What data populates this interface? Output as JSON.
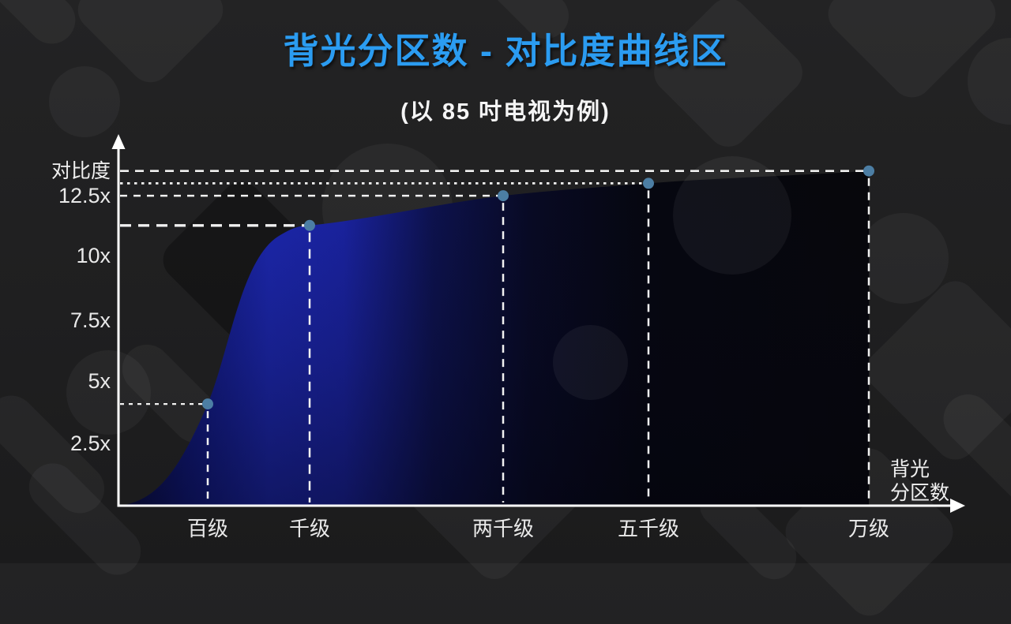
{
  "title": "背光分区数 - 对比度曲线区",
  "subtitle": "(以 85 吋电视为例)",
  "y_axis": {
    "label": "对比度",
    "ticks": [
      "12.5x",
      "10x",
      "7.5x",
      "5x",
      "2.5x"
    ]
  },
  "x_axis": {
    "label_line1": "背光",
    "label_line2": "分区数"
  },
  "chart_data": {
    "type": "area",
    "title": "背光分区数 - 对比度曲线区",
    "subtitle": "(以 85 吋电视为例)",
    "xlabel": "背光分区数",
    "ylabel": "对比度",
    "categories": [
      "百级",
      "千级",
      "两千级",
      "五千级",
      "万级"
    ],
    "values": [
      4.1,
      11.3,
      12.5,
      13.0,
      13.5
    ],
    "value_unit": "x (contrast multiple)",
    "y_ticks": [
      2.5,
      5,
      7.5,
      10,
      12.5
    ],
    "ylim": [
      0,
      14.6
    ],
    "x_scale": "category, non-linear spacing",
    "grid": false,
    "legend": false,
    "annotations": "dashed white guide lines from every data point to both axes; steel-blue dot markers; area fill fades from bright blue (left) to near-black (right)"
  },
  "colors": {
    "title_blue": "#2B9CF1",
    "text_light": "#F0F0F0",
    "axis_white": "#FFFFFF",
    "point_marker": "#4C7EA4",
    "guide_dash": "#F1F1F1",
    "curve_bright_blue": "#1C27AE",
    "curve_deep_navy": "#0A0D3E",
    "background": "#1F1F20"
  }
}
